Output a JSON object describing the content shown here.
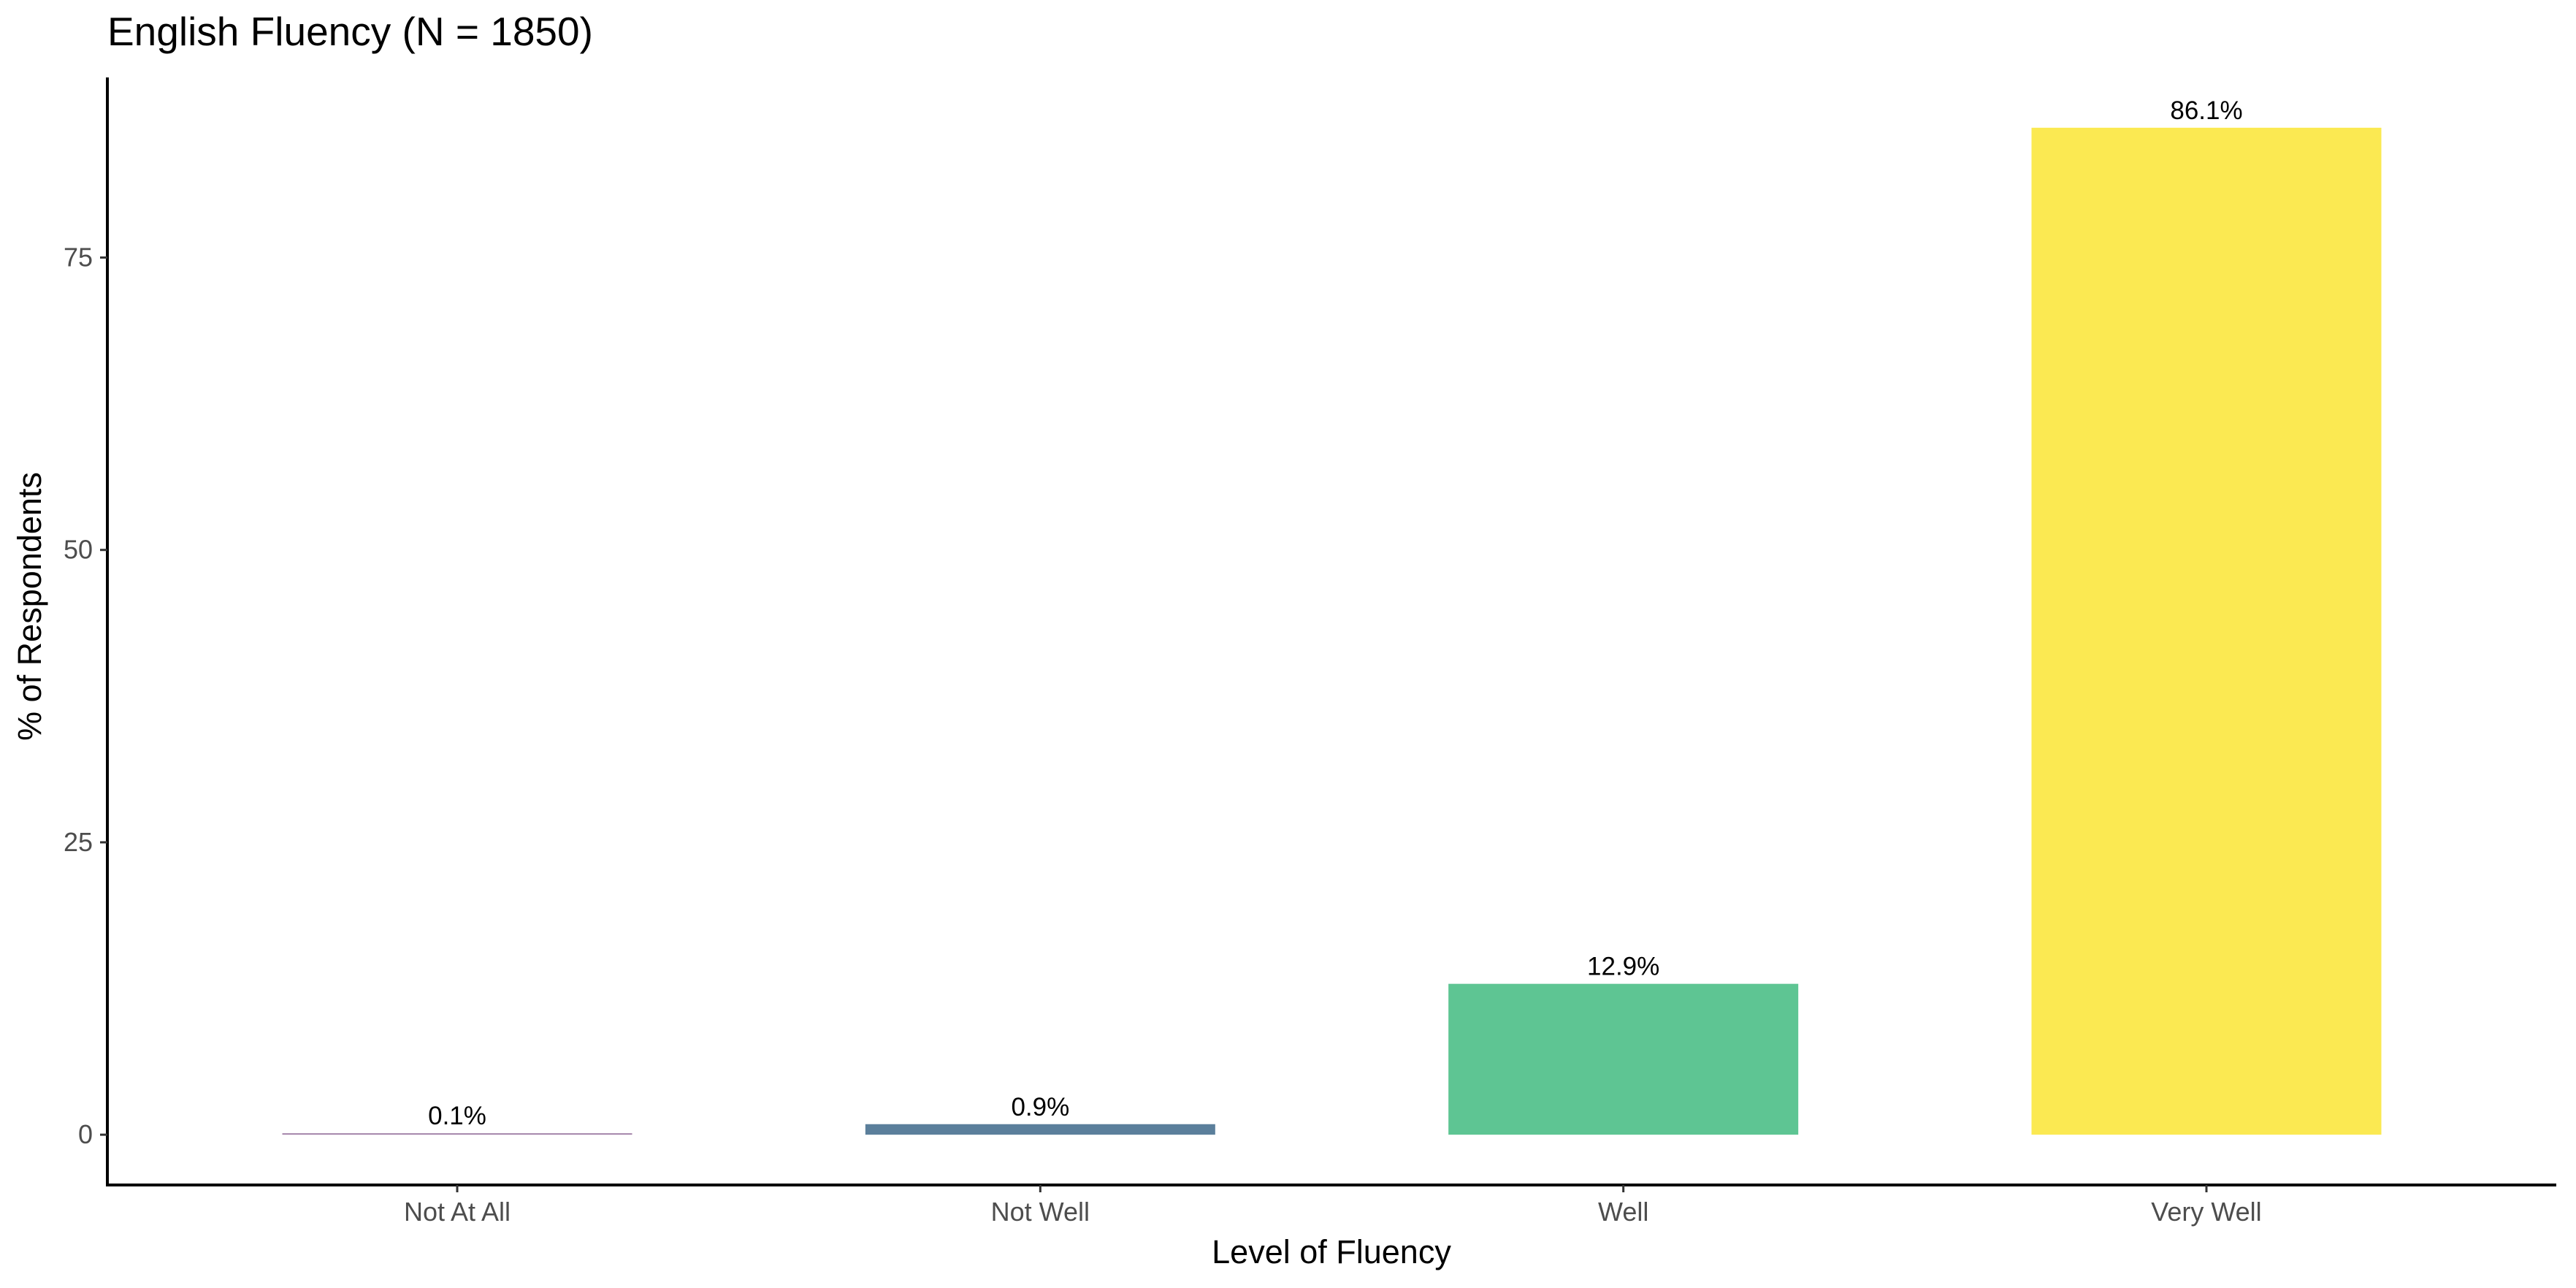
{
  "chart_data": {
    "type": "bar",
    "title": "English Fluency (N = 1850)",
    "xlabel": "Level of Fluency",
    "ylabel": "% of Respondents",
    "categories": [
      "Not At All",
      "Not Well",
      "Well",
      "Very Well"
    ],
    "values": [
      0.1,
      0.9,
      12.9,
      86.1
    ],
    "data_labels": [
      "0.1%",
      "0.9%",
      "12.9%",
      "86.1%"
    ],
    "colors": [
      "#a484a9",
      "#5b7f9b",
      "#5ec593",
      "#fbe952"
    ],
    "yticks": [
      0,
      25,
      50,
      75
    ],
    "ytick_labels": [
      "0",
      "25",
      "50",
      "75"
    ],
    "ylim": [
      -4.3,
      90.4
    ],
    "grid": false,
    "legend": "none"
  }
}
